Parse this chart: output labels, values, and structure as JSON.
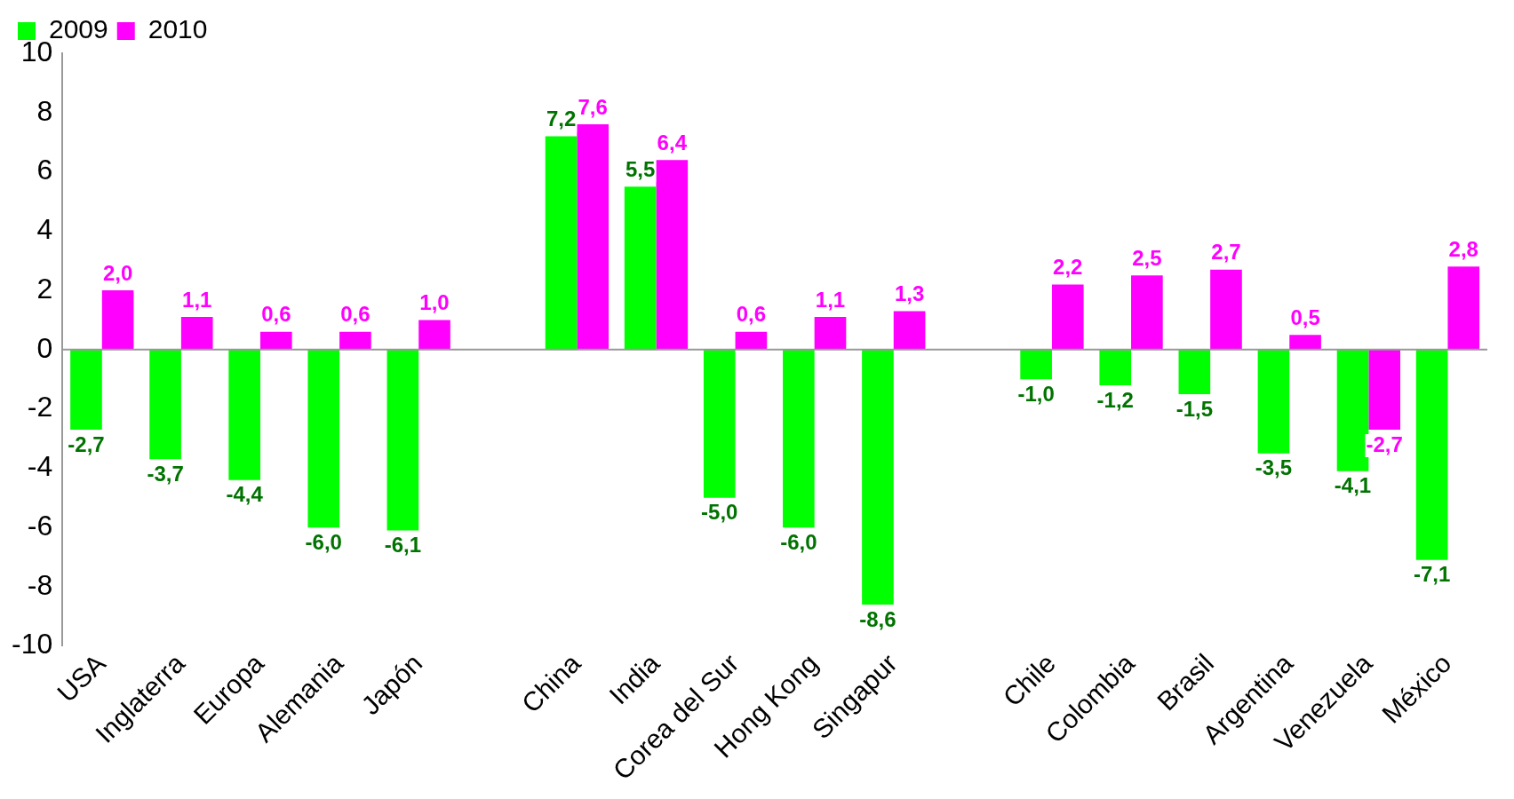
{
  "chart_data": {
    "type": "bar",
    "categories": [
      "USA",
      "Inglaterra",
      "Europa",
      "Alemania",
      "Japón",
      null,
      "China",
      "India",
      "Corea del Sur",
      "Hong Kong",
      "Singapur",
      null,
      "Chile",
      "Colombia",
      "Brasil",
      "Argentina",
      "Venezuela",
      "México"
    ],
    "series": [
      {
        "name": "2009",
        "color": "#00ff00",
        "values": [
          -2.7,
          -3.7,
          -4.4,
          -6.0,
          -6.1,
          null,
          7.2,
          5.5,
          -5.0,
          -6.0,
          -8.6,
          null,
          -1.0,
          -1.2,
          -1.5,
          -3.5,
          -4.1,
          -7.1
        ],
        "value_labels": [
          "-2,7",
          "-3,7",
          "-4,4",
          "-6,0",
          "-6,1",
          null,
          "7,2",
          "5,5",
          "-5,0",
          "-6,0",
          "-8,6",
          null,
          "-1,0",
          "-1,2",
          "-1,5",
          "-3,5",
          "-4,1",
          "-7,1"
        ]
      },
      {
        "name": "2010",
        "color": "#ff00ff",
        "values": [
          2.0,
          1.1,
          0.6,
          0.6,
          1.0,
          null,
          7.6,
          6.4,
          0.6,
          1.1,
          1.3,
          null,
          2.2,
          2.5,
          2.7,
          0.5,
          -2.7,
          2.8
        ],
        "value_labels": [
          "2,0",
          "1,1",
          "0,6",
          "0,6",
          "1,0",
          null,
          "7,6",
          "6,4",
          "0,6",
          "1,1",
          "1,3",
          null,
          "2,2",
          "2,5",
          "2,7",
          "0,5",
          "-2,7",
          "2,8"
        ]
      }
    ],
    "ylim": [
      -10,
      10
    ],
    "yticks": [
      -10,
      -8,
      -6,
      -4,
      -2,
      0,
      2,
      4,
      6,
      8,
      10
    ],
    "legend": "top left"
  }
}
